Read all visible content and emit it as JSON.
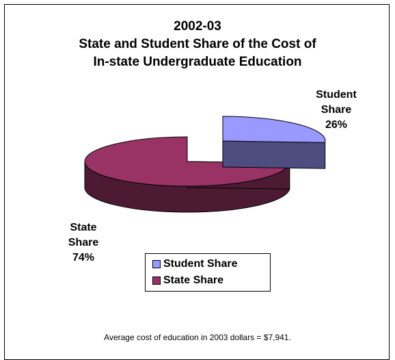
{
  "chart_data": {
    "type": "pie",
    "title_lines": [
      "2002-03",
      "State and Student Share of the Cost of",
      "In-state Undergraduate Education"
    ],
    "slices": [
      {
        "name": "Student Share",
        "value": 26,
        "label_lines": [
          "Student",
          "Share",
          "26%"
        ],
        "color": "#9999ff",
        "side_color": "#4d4d80"
      },
      {
        "name": "State Share",
        "value": 74,
        "label_lines": [
          "State",
          "Share",
          "74%"
        ],
        "color": "#993366",
        "side_color": "#4d1a33"
      }
    ],
    "legend": [
      "Student Share",
      "State Share"
    ],
    "legend_placement": "bottom-center",
    "footnote": "Average cost of education in 2003 dollars = $7,941.",
    "style": "3d-exploded"
  }
}
